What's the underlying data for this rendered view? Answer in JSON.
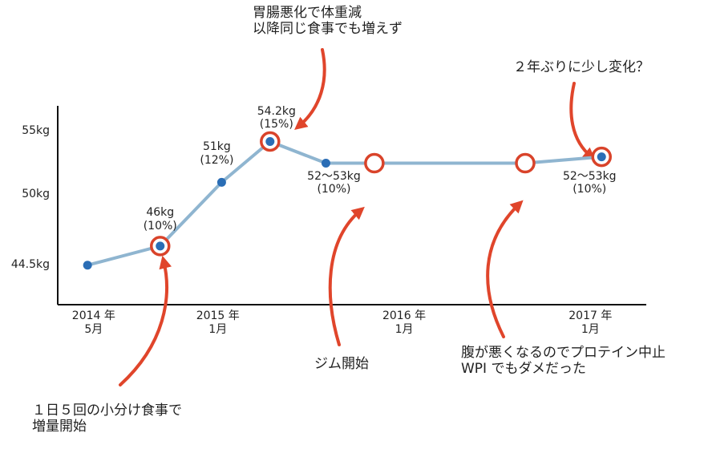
{
  "chart_data": {
    "type": "line",
    "x": [
      2014.3,
      2014.69,
      2015.02,
      2015.28,
      2015.58,
      2015.84,
      2016.65,
      2017.06
    ],
    "values": [
      44.5,
      46,
      51,
      54.2,
      52.5,
      52.5,
      52.5,
      53
    ],
    "value_labels": [
      null,
      "46kg\n(10%)",
      "51kg\n(12%)",
      "54.2kg\n(15%)",
      "52～53kg\n(10%)",
      null,
      null,
      "52～53kg\n(10%)"
    ],
    "color": "#8fb5d0",
    "point_color": "#2a6db5",
    "highlight_color": "#d9432a",
    "highlighted": [
      1,
      3,
      5,
      6,
      7
    ],
    "xlim": [
      2014.14,
      2017.3
    ],
    "ylim": [
      41.4,
      57
    ],
    "xticks": [
      {
        "value": 2014.333,
        "label": "2014 年\n5月"
      },
      {
        "value": 2015,
        "label": "2015 年\n1月"
      },
      {
        "value": 2016,
        "label": "2016 年\n1月"
      },
      {
        "value": 2017,
        "label": "2017 年\n1月"
      }
    ],
    "yticks": [
      {
        "value": 44.5,
        "label": "44.5kg"
      },
      {
        "value": 50,
        "label": "50kg"
      },
      {
        "value": 55,
        "label": "55kg"
      }
    ],
    "annotations": [
      {
        "text": "胃腸悪化で体重減\n以降同じ食事でも増えず"
      },
      {
        "text": "２年ぶりに少し変化？"
      },
      {
        "text": "ジム開始"
      },
      {
        "text": "腹が悪くなるのでプロテイン中止\nWPI でもダメだった"
      },
      {
        "text": "１日５回の小分け食事で\n増量開始"
      }
    ]
  }
}
